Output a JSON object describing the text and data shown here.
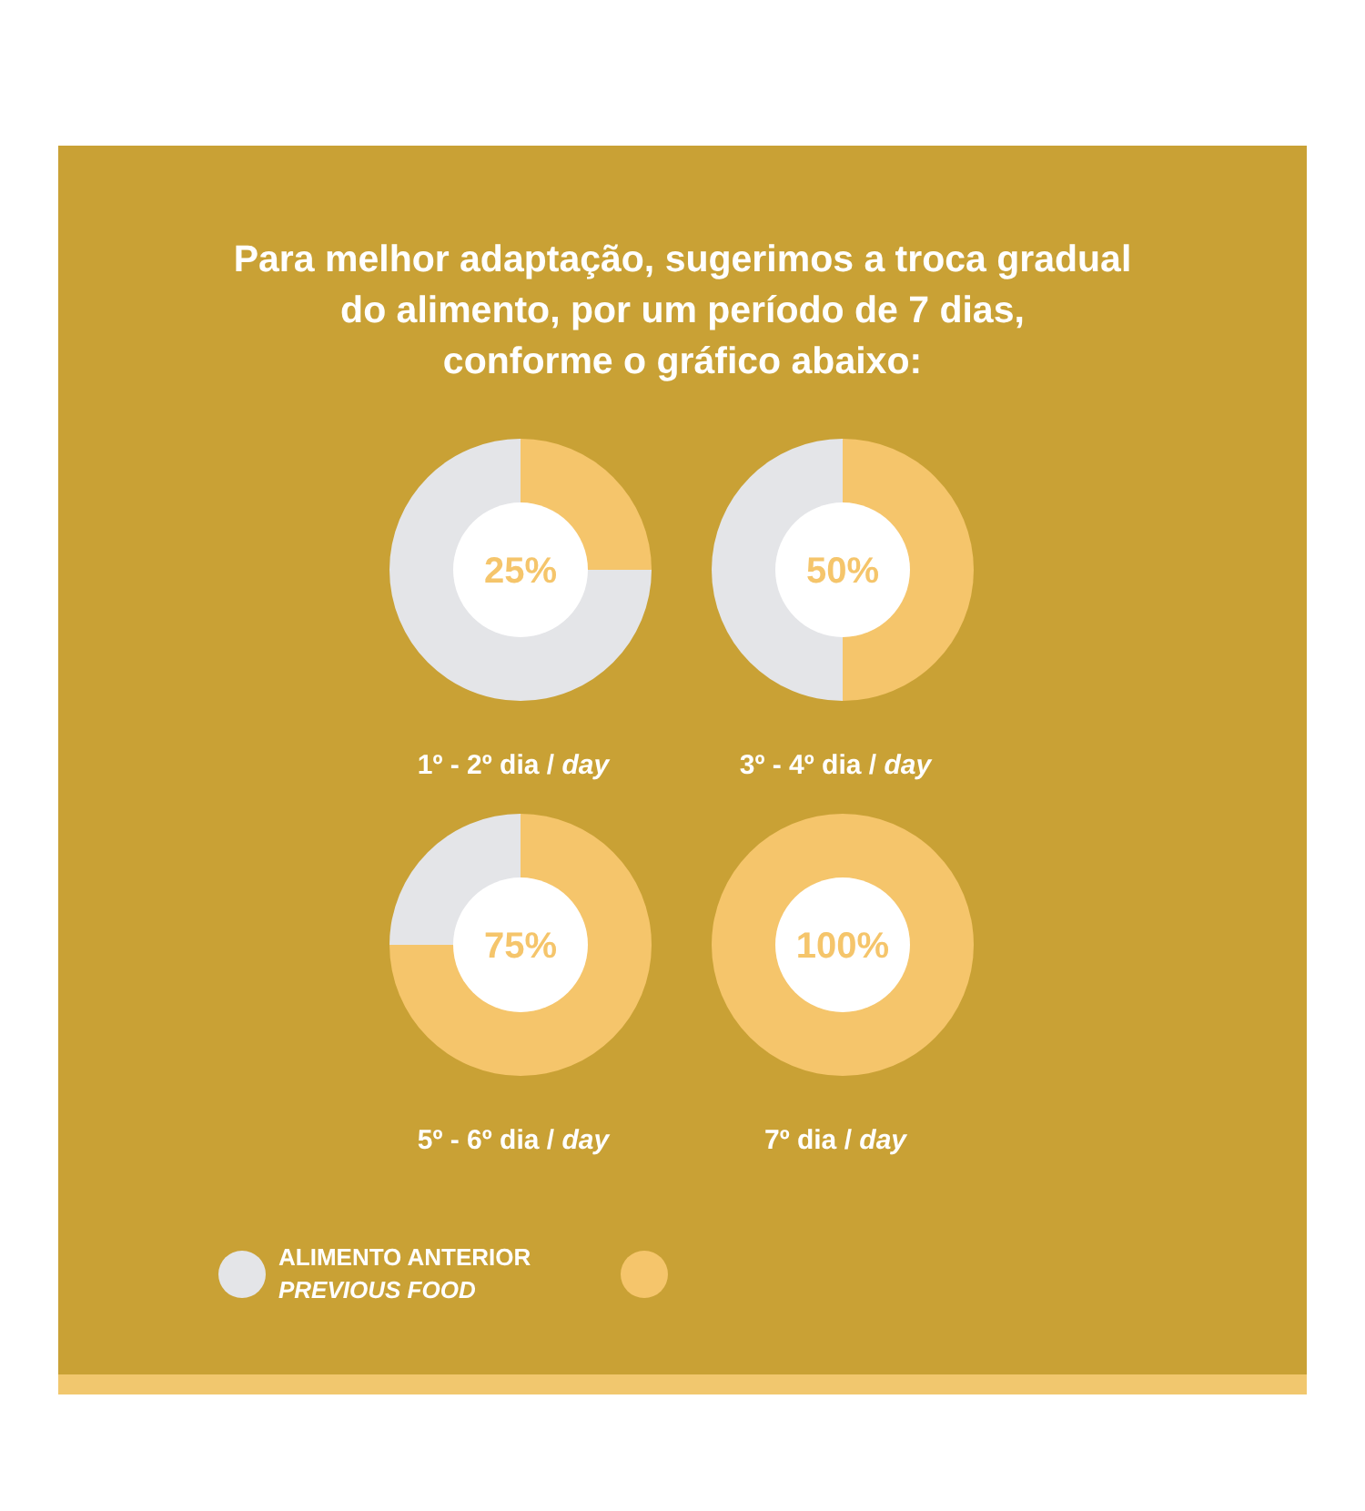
{
  "chart_data": [
    {
      "type": "donut",
      "title": "Para melhor adaptação, sugerimos a troca gradual\ndo alimento, por um período de 7 dias,\nconforme o gráfico abaixo:",
      "xlabel": "1º - 2º dia / day",
      "categories": [
        "ALIMENTO ANTERIOR\nPREVIOUS FOOD",
        null
      ],
      "values": [
        75,
        25
      ],
      "colors": [
        "#e4e5e8",
        "#f5c56b"
      ],
      "annotations": [
        "25%"
      ],
      "legend": "bottom"
    },
    {
      "type": "donut",
      "xlabel": "3º - 4º dia / day",
      "categories": [
        null,
        null
      ],
      "values": [
        50,
        50
      ],
      "colors": [
        "#e4e5e8",
        "#f5c56b"
      ],
      "annotations": [
        "50%"
      ]
    },
    {
      "type": "donut",
      "xlabel": "5º - 6º dia / day",
      "categories": [
        null,
        null
      ],
      "values": [
        25,
        75
      ],
      "colors": [
        "#e4e5e8",
        "#f5c56b"
      ],
      "annotations": [
        "75%"
      ]
    },
    {
      "type": "donut",
      "xlabel": "7º dia / day",
      "categories": [
        null,
        null
      ],
      "values": [
        0,
        100
      ],
      "colors": [
        "#e4e5e8",
        "#f5c56b"
      ],
      "annotations": [
        "100%"
      ]
    }
  ]
}
